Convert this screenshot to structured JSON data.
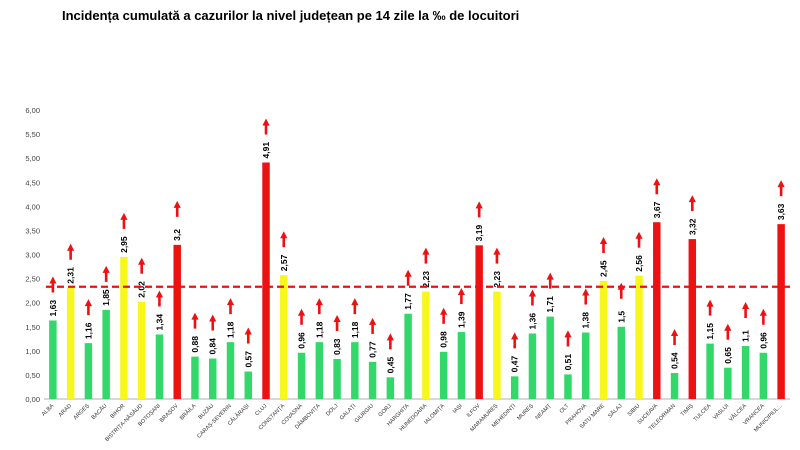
{
  "chart_data": {
    "type": "bar",
    "title": "Incidența cumulată a cazurilor la nivel județean pe 14 zile la ‰ de locuitori",
    "xlabel": "",
    "ylabel": "",
    "ylim": [
      0,
      6
    ],
    "yticks": [
      "0,00",
      "0,50",
      "1,00",
      "1,50",
      "2,00",
      "2,50",
      "3,00",
      "3,50",
      "4,00",
      "4,50",
      "5,00",
      "5,50",
      "6,00"
    ],
    "reference_line": 2.33,
    "colors": {
      "green": "#33d86a",
      "yellow": "#f7f71c",
      "red": "#ee1111",
      "arrow": "#ee1111",
      "reference": "#ee1111"
    },
    "categories": [
      "ALBA",
      "ARAD",
      "ARGEȘ",
      "BACĂU",
      "BIHOR",
      "BISTRIȚA-NĂSĂUD",
      "BOTOȘANI",
      "BRAȘOV",
      "BRĂILA",
      "BUZĂU",
      "CARAȘ-SEVERIN",
      "CĂLĂRAȘI",
      "CLUJ",
      "CONSTANȚA",
      "COVASNA",
      "DÂMBOVIȚA",
      "DOLJ",
      "GALAȚI",
      "GIURGIU",
      "GORJ",
      "HARGHITA",
      "HUNEDOARA",
      "IALOMIȚA",
      "IAȘI",
      "ILFOV",
      "MARAMUREȘ",
      "MEHEDINȚI",
      "MUREȘ",
      "NEAMȚ",
      "OLT",
      "PRAHOVA",
      "SATU MARE",
      "SĂLAJ",
      "SIBIU",
      "SUCEAVA",
      "TELEORMAN",
      "TIMIȘ",
      "TULCEA",
      "VASLUI",
      "VÂLCEA",
      "VRANCEA",
      "MUNICIPIUL..."
    ],
    "values": [
      1.63,
      2.31,
      1.16,
      1.85,
      2.95,
      2.02,
      1.34,
      3.2,
      0.88,
      0.84,
      1.18,
      0.57,
      4.91,
      2.57,
      0.96,
      1.18,
      0.83,
      1.18,
      0.77,
      0.45,
      1.77,
      2.23,
      0.98,
      1.39,
      3.19,
      2.23,
      0.47,
      1.36,
      1.71,
      0.51,
      1.38,
      2.45,
      1.5,
      2.56,
      3.67,
      0.54,
      3.32,
      1.15,
      0.65,
      1.1,
      0.96,
      3.63
    ],
    "labels": [
      "1,63",
      "2,31",
      "1,16",
      "1,85",
      "2,95",
      "2,02",
      "1,34",
      "3,2",
      "0,88",
      "0,84",
      "1,18",
      "0,57",
      "4,91",
      "2,57",
      "0,96",
      "1,18",
      "0,83",
      "1,18",
      "0,77",
      "0,45",
      "1,77",
      "2,23",
      "0,98",
      "1,39",
      "3,19",
      "2,23",
      "0,47",
      "1,36",
      "1,71",
      "0,51",
      "1,38",
      "2,45",
      "1,5",
      "2,56",
      "3,67",
      "0,54",
      "3,32",
      "1,15",
      "0,65",
      "1,1",
      "0,96",
      "3,63"
    ],
    "bar_colors": [
      "green",
      "yellow",
      "green",
      "green",
      "yellow",
      "yellow",
      "green",
      "red",
      "green",
      "green",
      "green",
      "green",
      "red",
      "yellow",
      "green",
      "green",
      "green",
      "green",
      "green",
      "green",
      "green",
      "yellow",
      "green",
      "green",
      "red",
      "yellow",
      "green",
      "green",
      "green",
      "green",
      "green",
      "yellow",
      "green",
      "yellow",
      "red",
      "green",
      "red",
      "green",
      "green",
      "green",
      "green",
      "red"
    ]
  }
}
